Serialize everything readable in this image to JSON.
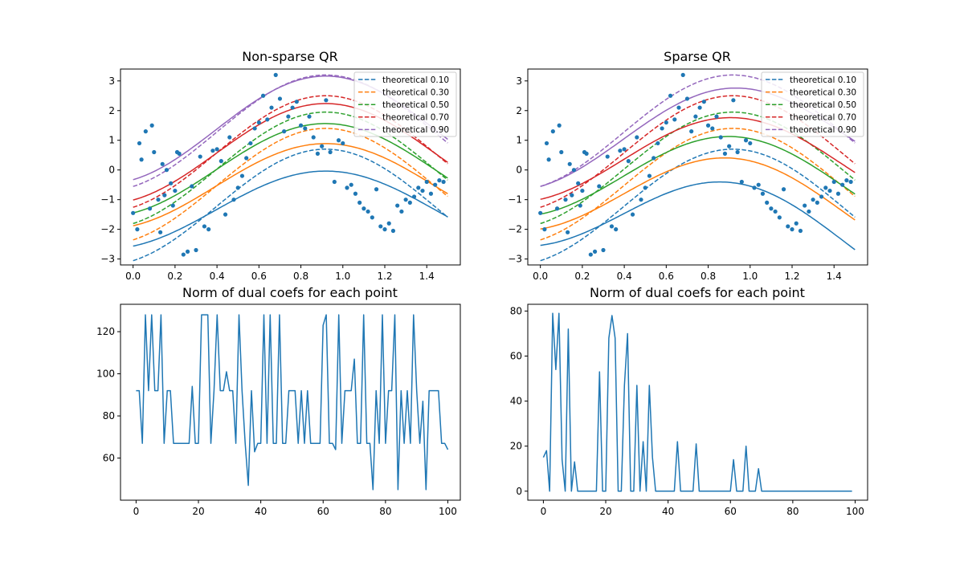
{
  "figure": {
    "titles": [
      "Non-sparse QR",
      "Sparse QR",
      "Norm of dual coefs for each point",
      "Norm of dual coefs for each point"
    ]
  },
  "chart_data": [
    {
      "type": "scatter",
      "title": "Non-sparse QR",
      "xlim": [
        -0.06,
        1.56
      ],
      "ylim": [
        -3.2,
        3.4
      ],
      "xticks": [
        "0.0",
        "0.2",
        "0.4",
        "0.6",
        "0.8",
        "1.0",
        "1.2",
        "1.4"
      ],
      "yticks": [
        "-3",
        "-2",
        "-1",
        "0",
        "1",
        "2",
        "3"
      ],
      "legend_position": "top-right",
      "quantiles": [
        0.1,
        0.3,
        0.5,
        0.7,
        0.9
      ],
      "series_colors": [
        "#1f77b4",
        "#ff7f0e",
        "#2ca02c",
        "#d62728",
        "#9467bd"
      ],
      "legend": [
        "theoretical 0.10",
        "theoretical 0.30",
        "theoretical 0.50",
        "theoretical 0.70",
        "theoretical 0.90"
      ],
      "points": [
        [
          0.0,
          -1.45
        ],
        [
          0.02,
          -2.0
        ],
        [
          0.03,
          0.9
        ],
        [
          0.04,
          0.35
        ],
        [
          0.06,
          1.3
        ],
        [
          0.08,
          -1.3
        ],
        [
          0.09,
          1.5
        ],
        [
          0.1,
          0.6
        ],
        [
          0.12,
          -1.0
        ],
        [
          0.13,
          -2.1
        ],
        [
          0.14,
          0.2
        ],
        [
          0.15,
          -0.85
        ],
        [
          0.16,
          0.0
        ],
        [
          0.18,
          -0.45
        ],
        [
          0.19,
          -1.2
        ],
        [
          0.2,
          -0.7
        ],
        [
          0.21,
          0.6
        ],
        [
          0.22,
          0.55
        ],
        [
          0.24,
          -2.85
        ],
        [
          0.26,
          -2.75
        ],
        [
          0.28,
          -0.55
        ],
        [
          0.3,
          -2.7
        ],
        [
          0.32,
          0.45
        ],
        [
          0.34,
          -1.9
        ],
        [
          0.36,
          -2.0
        ],
        [
          0.38,
          0.65
        ],
        [
          0.4,
          0.7
        ],
        [
          0.42,
          0.3
        ],
        [
          0.44,
          -1.5
        ],
        [
          0.46,
          1.1
        ],
        [
          0.48,
          -1.0
        ],
        [
          0.5,
          -0.6
        ],
        [
          0.52,
          -0.2
        ],
        [
          0.54,
          0.4
        ],
        [
          0.56,
          0.9
        ],
        [
          0.58,
          1.4
        ],
        [
          0.6,
          1.6
        ],
        [
          0.62,
          2.5
        ],
        [
          0.64,
          1.7
        ],
        [
          0.66,
          2.1
        ],
        [
          0.68,
          3.2
        ],
        [
          0.7,
          2.4
        ],
        [
          0.72,
          1.3
        ],
        [
          0.74,
          1.8
        ],
        [
          0.76,
          2.1
        ],
        [
          0.78,
          2.3
        ],
        [
          0.8,
          1.5
        ],
        [
          0.82,
          1.4
        ],
        [
          0.84,
          1.8
        ],
        [
          0.86,
          1.1
        ],
        [
          0.88,
          0.55
        ],
        [
          0.9,
          0.8
        ],
        [
          0.92,
          2.35
        ],
        [
          0.94,
          0.6
        ],
        [
          0.96,
          -0.4
        ],
        [
          0.98,
          1.0
        ],
        [
          1.0,
          0.9
        ],
        [
          1.02,
          -0.6
        ],
        [
          1.04,
          -0.5
        ],
        [
          1.06,
          -0.8
        ],
        [
          1.08,
          -1.1
        ],
        [
          1.1,
          -1.3
        ],
        [
          1.12,
          -1.4
        ],
        [
          1.14,
          -1.6
        ],
        [
          1.16,
          -0.65
        ],
        [
          1.18,
          -1.9
        ],
        [
          1.2,
          -2.0
        ],
        [
          1.22,
          -1.8
        ],
        [
          1.24,
          -2.05
        ],
        [
          1.26,
          -1.2
        ],
        [
          1.28,
          -1.4
        ],
        [
          1.3,
          -1.0
        ],
        [
          1.32,
          -1.1
        ],
        [
          1.34,
          -0.9
        ],
        [
          1.36,
          -0.6
        ],
        [
          1.38,
          -0.7
        ],
        [
          1.4,
          -0.4
        ],
        [
          1.42,
          -0.8
        ],
        [
          1.44,
          -0.5
        ],
        [
          1.46,
          -0.35
        ],
        [
          1.48,
          -0.4
        ]
      ],
      "fitted_offsets": [
        -1.35,
        -0.55,
        0.0,
        0.55,
        1.35
      ],
      "fitted_amps": [
        1.05,
        1.15,
        1.25,
        1.35,
        1.45
      ],
      "theoretical_offsets": [
        -1.25,
        -0.55,
        0.0,
        0.55,
        1.25
      ]
    },
    {
      "type": "scatter",
      "title": "Sparse QR",
      "xlim": [
        -0.06,
        1.56
      ],
      "ylim": [
        -3.2,
        3.4
      ],
      "xticks": [
        "0.0",
        "0.2",
        "0.4",
        "0.6",
        "0.8",
        "1.0",
        "1.2",
        "1.4"
      ],
      "yticks": [
        "-3",
        "-2",
        "-1",
        "0",
        "1",
        "2",
        "3"
      ],
      "legend_position": "top-right",
      "quantiles": [
        0.1,
        0.3,
        0.5,
        0.7,
        0.9
      ],
      "series_colors": [
        "#1f77b4",
        "#ff7f0e",
        "#2ca02c",
        "#d62728",
        "#9467bd"
      ],
      "legend": [
        "theoretical 0.10",
        "theoretical 0.30",
        "theoretical 0.50",
        "theoretical 0.70",
        "theoretical 0.90"
      ],
      "fitted_offsets": [
        -1.15,
        -0.6,
        -0.1,
        0.4,
        0.95
      ],
      "fitted_amps": [
        1.2,
        1.2,
        1.2,
        1.2,
        1.3
      ],
      "fitted_tilt": [
        -0.85,
        -0.55,
        -0.3,
        -0.15,
        0.2
      ],
      "theoretical_offsets": [
        -1.25,
        -0.55,
        0.0,
        0.55,
        1.25
      ]
    },
    {
      "type": "line",
      "title": "Norm of dual coefs for each point",
      "xlim": [
        -5,
        104
      ],
      "ylim": [
        40,
        133
      ],
      "xticks": [
        "0",
        "20",
        "40",
        "60",
        "80",
        "100"
      ],
      "yticks": [
        "60",
        "80",
        "100",
        "120"
      ],
      "series_color": "#1f77b4",
      "values": [
        92,
        92,
        67,
        128,
        92,
        128,
        92,
        92,
        128,
        67,
        92,
        92,
        67,
        67,
        67,
        67,
        67,
        67,
        94,
        67,
        67,
        128,
        128,
        128,
        67,
        92,
        128,
        92,
        92,
        101,
        92,
        92,
        67,
        128,
        92,
        67,
        47,
        92,
        63,
        67,
        67,
        128,
        67,
        128,
        67,
        67,
        128,
        67,
        67,
        92,
        92,
        92,
        67,
        92,
        67,
        92,
        67,
        67,
        67,
        67,
        123,
        128,
        67,
        67,
        64,
        128,
        67,
        92,
        92,
        92,
        107,
        67,
        67,
        128,
        67,
        67,
        45,
        92,
        67,
        128,
        67,
        92,
        92,
        128,
        45,
        92,
        67,
        92,
        67,
        128,
        92,
        67,
        87,
        45,
        92,
        92,
        92,
        92,
        67,
        67,
        64
      ]
    },
    {
      "type": "line",
      "title": "Norm of dual coefs for each point",
      "xlim": [
        -5,
        104
      ],
      "ylim": [
        -4,
        83
      ],
      "xticks": [
        "0",
        "20",
        "40",
        "60",
        "80",
        "100"
      ],
      "yticks": [
        "0",
        "20",
        "40",
        "60",
        "80"
      ],
      "series_color": "#1f77b4",
      "values": [
        15,
        18,
        0,
        79,
        54,
        79,
        14,
        0,
        72,
        0,
        13,
        0,
        0,
        0,
        0,
        0,
        0,
        0,
        53,
        0,
        0,
        68,
        78,
        68,
        0,
        0,
        47,
        70,
        0,
        0,
        47,
        0,
        22,
        0,
        47,
        15,
        0,
        0,
        0,
        0,
        0,
        0,
        0,
        22,
        0,
        0,
        0,
        0,
        0,
        21,
        0,
        0,
        0,
        0,
        0,
        0,
        0,
        0,
        0,
        0,
        0,
        14,
        0,
        0,
        0,
        20,
        0,
        0,
        0,
        10,
        0,
        0,
        0,
        0,
        0,
        0,
        0,
        0,
        0,
        0,
        0,
        0,
        0,
        0,
        0,
        0,
        0,
        0,
        0,
        0,
        0,
        0,
        0,
        0,
        0,
        0,
        0,
        0,
        0,
        0
      ]
    }
  ]
}
